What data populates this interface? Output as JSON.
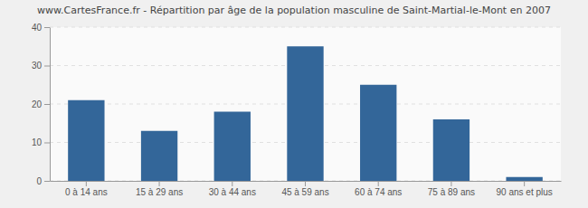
{
  "chart_data": {
    "type": "bar",
    "title": "www.CartesFrance.fr - Répartition par âge de la population masculine de Saint-Martial-le-Mont en 2007",
    "categories": [
      "0 à 14 ans",
      "15 à 29 ans",
      "30 à 44 ans",
      "45 à 59 ans",
      "60 à 74 ans",
      "75 à 89 ans",
      "90 ans et plus"
    ],
    "values": [
      21,
      13,
      18,
      35,
      25,
      16,
      1
    ],
    "color": "#336699",
    "ylim": [
      0,
      40
    ],
    "yticks": [
      0,
      10,
      20,
      30,
      40
    ],
    "grid": true
  }
}
